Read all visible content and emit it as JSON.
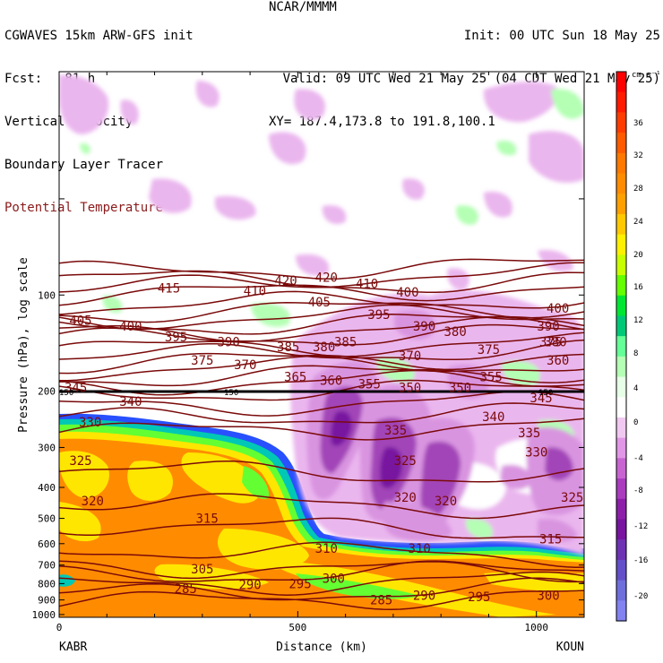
{
  "header": {
    "model": "CGWAVES 15km ARW-GFS init",
    "forecast": "Fcst:   81 h",
    "center": "NCAR/MMMM",
    "init": "Init: 00 UTC Sun 18 May 25",
    "valid": "Valid: 09 UTC Wed 21 May 25 (04 CDT Wed 21 May 25)",
    "xy": "XY= 187.4,173.8 to 191.8,100.1",
    "fields": [
      "Vertical velocity",
      "Boundary Layer Tracer",
      "Potential Temperature"
    ]
  },
  "chart_data": {
    "type": "heatmap",
    "title": "",
    "xlabel": "Distance (km)",
    "ylabel": "Pressure (hPa), log scale",
    "xlim": [
      0,
      1100
    ],
    "ylim": [
      1000,
      20
    ],
    "y_scale": "log",
    "x_ticks": [
      "0",
      "500",
      "1000"
    ],
    "y_ticks": [
      "100",
      "200",
      "300",
      "400",
      "500",
      "600",
      "700",
      "800",
      "900",
      "1000"
    ],
    "endpoints": {
      "left": "KABR",
      "right": "KOUN"
    },
    "special_line_label": "150",
    "colorbar": {
      "units": "cm s⁻¹",
      "labels": [
        "36",
        "32",
        "28",
        "24",
        "20",
        "16",
        "12",
        "8",
        "4",
        "0",
        "-4",
        "-8",
        "-12",
        "-16",
        "-20"
      ],
      "colors": [
        "#ff0000",
        "#ff1a00",
        "#ff3c00",
        "#ff5a00",
        "#ff7800",
        "#ff8c00",
        "#ffa000",
        "#ffc800",
        "#fff000",
        "#c8ff00",
        "#64ff00",
        "#00e632",
        "#00c878",
        "#64ff96",
        "#b4ffb4",
        "#e6ffe6",
        "#ffffff",
        "#f0c8f0",
        "#e196e6",
        "#c864d2",
        "#aa3cbe",
        "#8c1eaa",
        "#7814a0",
        "#6e32b4",
        "#6450c8",
        "#6e6edc",
        "#8282f0"
      ]
    },
    "theta_labels": [
      {
        "x": 230,
        "p": 95,
        "text": "415"
      },
      {
        "x": 410,
        "p": 97,
        "text": "410"
      },
      {
        "x": 475,
        "p": 90,
        "text": "420"
      },
      {
        "x": 560,
        "p": 88,
        "text": "420"
      },
      {
        "x": 645,
        "p": 92,
        "text": "410"
      },
      {
        "x": 730,
        "p": 98,
        "text": "400"
      },
      {
        "x": 45,
        "p": 120,
        "text": "405"
      },
      {
        "x": 150,
        "p": 125,
        "text": "400"
      },
      {
        "x": 245,
        "p": 135,
        "text": "395"
      },
      {
        "x": 355,
        "p": 140,
        "text": "390"
      },
      {
        "x": 480,
        "p": 145,
        "text": "385"
      },
      {
        "x": 555,
        "p": 145,
        "text": "380"
      },
      {
        "x": 600,
        "p": 140,
        "text": "385"
      },
      {
        "x": 545,
        "p": 105,
        "text": "405"
      },
      {
        "x": 670,
        "p": 115,
        "text": "395"
      },
      {
        "x": 765,
        "p": 125,
        "text": "390"
      },
      {
        "x": 830,
        "p": 130,
        "text": "380"
      },
      {
        "x": 900,
        "p": 148,
        "text": "375"
      },
      {
        "x": 1030,
        "p": 140,
        "text": "375"
      },
      {
        "x": 1045,
        "p": 160,
        "text": "360"
      },
      {
        "x": 1045,
        "p": 110,
        "text": "400"
      },
      {
        "x": 1025,
        "p": 125,
        "text": "390"
      },
      {
        "x": 1040,
        "p": 140,
        "text": "380"
      },
      {
        "x": 300,
        "p": 160,
        "text": "375"
      },
      {
        "x": 390,
        "p": 165,
        "text": "370"
      },
      {
        "x": 495,
        "p": 180,
        "text": "365"
      },
      {
        "x": 570,
        "p": 185,
        "text": "360"
      },
      {
        "x": 650,
        "p": 190,
        "text": "355"
      },
      {
        "x": 735,
        "p": 195,
        "text": "350"
      },
      {
        "x": 840,
        "p": 195,
        "text": "350"
      },
      {
        "x": 905,
        "p": 180,
        "text": "355"
      },
      {
        "x": 735,
        "p": 155,
        "text": "370"
      },
      {
        "x": 35,
        "p": 195,
        "text": "345"
      },
      {
        "x": 150,
        "p": 215,
        "text": "340"
      },
      {
        "x": 65,
        "p": 250,
        "text": "330"
      },
      {
        "x": 705,
        "p": 265,
        "text": "335"
      },
      {
        "x": 910,
        "p": 240,
        "text": "340"
      },
      {
        "x": 985,
        "p": 270,
        "text": "335"
      },
      {
        "x": 1000,
        "p": 310,
        "text": "330"
      },
      {
        "x": 1010,
        "p": 210,
        "text": "345"
      },
      {
        "x": 45,
        "p": 330,
        "text": "325"
      },
      {
        "x": 725,
        "p": 330,
        "text": "325"
      },
      {
        "x": 1075,
        "p": 430,
        "text": "325"
      },
      {
        "x": 70,
        "p": 440,
        "text": "320"
      },
      {
        "x": 725,
        "p": 430,
        "text": "320"
      },
      {
        "x": 810,
        "p": 440,
        "text": "320"
      },
      {
        "x": 310,
        "p": 500,
        "text": "315"
      },
      {
        "x": 1030,
        "p": 580,
        "text": "315"
      },
      {
        "x": 560,
        "p": 620,
        "text": "310"
      },
      {
        "x": 755,
        "p": 620,
        "text": "310"
      },
      {
        "x": 300,
        "p": 720,
        "text": "305"
      },
      {
        "x": 575,
        "p": 770,
        "text": "300"
      },
      {
        "x": 505,
        "p": 800,
        "text": "295"
      },
      {
        "x": 400,
        "p": 805,
        "text": "290"
      },
      {
        "x": 265,
        "p": 830,
        "text": "285"
      },
      {
        "x": 765,
        "p": 870,
        "text": "290"
      },
      {
        "x": 880,
        "p": 880,
        "text": "295"
      },
      {
        "x": 1025,
        "p": 870,
        "text": "300"
      },
      {
        "x": 675,
        "p": 900,
        "text": "285"
      }
    ]
  },
  "colors": {
    "theta": "#7a0a0a",
    "tracer_orange": "#ff8c00",
    "tracer_yellow": "#ffe600",
    "tracer_green": "#64ff32",
    "tracer_cyan": "#00c8b4",
    "tracer_blue": "#2850ff",
    "omega_purple": "#8c1eaa",
    "omega_light": "#eab6ee"
  }
}
